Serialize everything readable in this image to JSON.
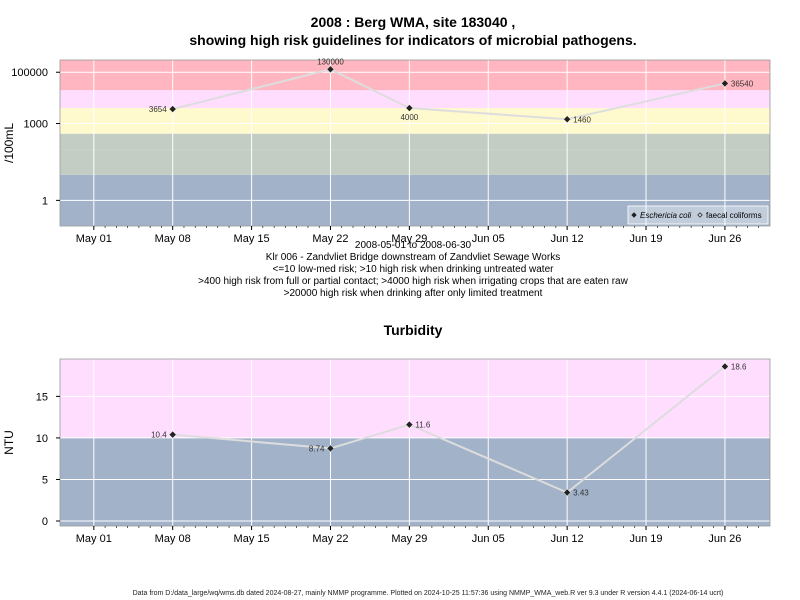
{
  "colors": {
    "red": "#FFB6C1",
    "pink": "#FFDDFF",
    "yellow": "#FFFACD",
    "sage": "#C3CDC3",
    "blue": "#A1B2C9",
    "line": "#DDDDDD",
    "grid": "#FFFFFF",
    "point": "#222222"
  },
  "chart_data": [
    {
      "type": "line",
      "title_line1": "2008 : Berg WMA, site 183040 ,",
      "title_line2": "showing high risk guidelines for indicators of microbial pathogens.",
      "ylabel": "/100mL",
      "y_scale": "log",
      "ylim": [
        0.1,
        300000
      ],
      "y_ticks": [
        1,
        1000,
        100000
      ],
      "y_tick_labels": [
        "1",
        "1000",
        "100000"
      ],
      "bands": [
        {
          "from": 0.1,
          "to": 10,
          "color": "#A1B2C9"
        },
        {
          "from": 10,
          "to": 100,
          "color": "#C3CDC3"
        },
        {
          "from": 100,
          "to": 400,
          "color": "#C3CDC3"
        },
        {
          "from": 400,
          "to": 4000,
          "color": "#FFFACD"
        },
        {
          "from": 4000,
          "to": 20000,
          "color": "#FFDDFF"
        },
        {
          "from": 20000,
          "to": 300000,
          "color": "#FFB6C1"
        }
      ],
      "x_ticks": [
        "2008-05-01",
        "2008-05-08",
        "2008-05-15",
        "2008-05-22",
        "2008-05-29",
        "2008-06-05",
        "2008-06-12",
        "2008-06-19",
        "2008-06-26"
      ],
      "x_tick_labels": [
        "May 01",
        "May 08",
        "May 15",
        "May 22",
        "May 29",
        "Jun 05",
        "Jun 12",
        "Jun 19",
        "Jun 26"
      ],
      "xlim": [
        "2008-04-28",
        "2008-06-30"
      ],
      "series": [
        {
          "name": "Eschericia coli",
          "x": [
            "2008-05-08",
            "2008-05-22",
            "2008-05-29",
            "2008-06-12",
            "2008-06-26"
          ],
          "values": [
            3654,
            130000,
            4000,
            1460,
            36540
          ],
          "labels": [
            "3654",
            "130000",
            "4000",
            "1460",
            "36540"
          ]
        }
      ],
      "legend": {
        "placement": "bottom-right",
        "items": [
          {
            "name": "Eschericia coli",
            "marker": "filled-diamond"
          },
          {
            "name": "faecal coliforms",
            "marker": "open-diamond"
          }
        ]
      },
      "caption": [
        "2008-05-01 to 2008-06-30",
        "Klr 006 - Zandvliet Bridge downstream of Zandvliet Sewage Works",
        "<=10 low-med risk; >10 high risk when drinking untreated water",
        ">400 high risk from full or partial contact; >4000 high risk when irrigating crops that are eaten raw",
        ">20000 high risk when drinking after only limited treatment"
      ]
    },
    {
      "type": "line",
      "title": "Turbidity",
      "ylabel": "NTU",
      "ylim": [
        -0.6,
        19.5
      ],
      "y_ticks": [
        0,
        5,
        10,
        15
      ],
      "y_tick_labels": [
        "0",
        "5",
        "10",
        "15"
      ],
      "bands": [
        {
          "from": -0.6,
          "to": 10,
          "color": "#A1B2C9"
        },
        {
          "from": 10,
          "to": 19.5,
          "color": "#FFDDFF"
        }
      ],
      "x_ticks": [
        "2008-05-01",
        "2008-05-08",
        "2008-05-15",
        "2008-05-22",
        "2008-05-29",
        "2008-06-05",
        "2008-06-12",
        "2008-06-19",
        "2008-06-26"
      ],
      "x_tick_labels": [
        "May 01",
        "May 08",
        "May 15",
        "May 22",
        "May 29",
        "Jun 05",
        "Jun 12",
        "Jun 19",
        "Jun 26"
      ],
      "xlim": [
        "2008-04-28",
        "2008-06-30"
      ],
      "series": [
        {
          "x": [
            "2008-05-08",
            "2008-05-22",
            "2008-05-29",
            "2008-06-12",
            "2008-06-26"
          ],
          "values": [
            10.4,
            8.74,
            11.6,
            3.43,
            18.6
          ],
          "labels": [
            "10.4",
            "8.74",
            "11.6",
            "3.43",
            "18.6"
          ]
        }
      ]
    }
  ],
  "footer": "Data from D:/data_large/wq/wms.db dated 2024-08-27, mainly NMMP programme. Plotted on 2024-10-25 11:57:36 using NMMP_WMA_web.R ver 9.3 under R version 4.4.1 (2024-06-14 ucrt)"
}
